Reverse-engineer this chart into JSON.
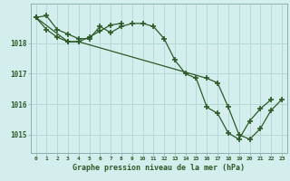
{
  "title": "Graphe pression niveau de la mer (hPa)",
  "bg_color": "#d4eeee",
  "line_color": "#2d5a27",
  "grid_color": "#b8d8d8",
  "series1": {
    "x": [
      0,
      1,
      2,
      3,
      4,
      5,
      6,
      7,
      8,
      9,
      10,
      11,
      12,
      13,
      14,
      15,
      16,
      17,
      18,
      19,
      20,
      21,
      22
    ],
    "y": [
      1018.85,
      1018.9,
      1018.45,
      1018.3,
      1018.15,
      1018.15,
      1018.55,
      1018.35,
      1018.55,
      1018.65,
      1018.65,
      1018.55,
      1018.15,
      1017.45,
      1017.0,
      1016.85,
      1015.9,
      1015.7,
      1015.05,
      1014.85,
      1015.45,
      1015.85,
      1016.15
    ]
  },
  "series2": {
    "x": [
      0,
      1,
      2,
      3,
      4,
      5,
      6,
      7,
      8
    ],
    "y": [
      1018.85,
      1018.45,
      1018.2,
      1018.05,
      1018.05,
      1018.2,
      1018.4,
      1018.6,
      1018.65
    ]
  },
  "series3": {
    "x": [
      0,
      3,
      4,
      16,
      17,
      18,
      19,
      20,
      21,
      22,
      23
    ],
    "y": [
      1018.85,
      1018.05,
      1018.05,
      1016.85,
      1016.7,
      1015.9,
      1015.0,
      1014.85,
      1015.2,
      1015.8,
      1016.15
    ]
  },
  "yticks": [
    1015,
    1016,
    1017,
    1018
  ],
  "ylim": [
    1014.4,
    1019.3
  ],
  "xlim": [
    -0.5,
    23.5
  ],
  "xtick_labels": [
    "0",
    "1",
    "2",
    "3",
    "4",
    "5",
    "6",
    "7",
    "8",
    "9",
    "10",
    "11",
    "12",
    "13",
    "14",
    "15",
    "16",
    "17",
    "18",
    "19",
    "20",
    "21",
    "22",
    "23"
  ]
}
